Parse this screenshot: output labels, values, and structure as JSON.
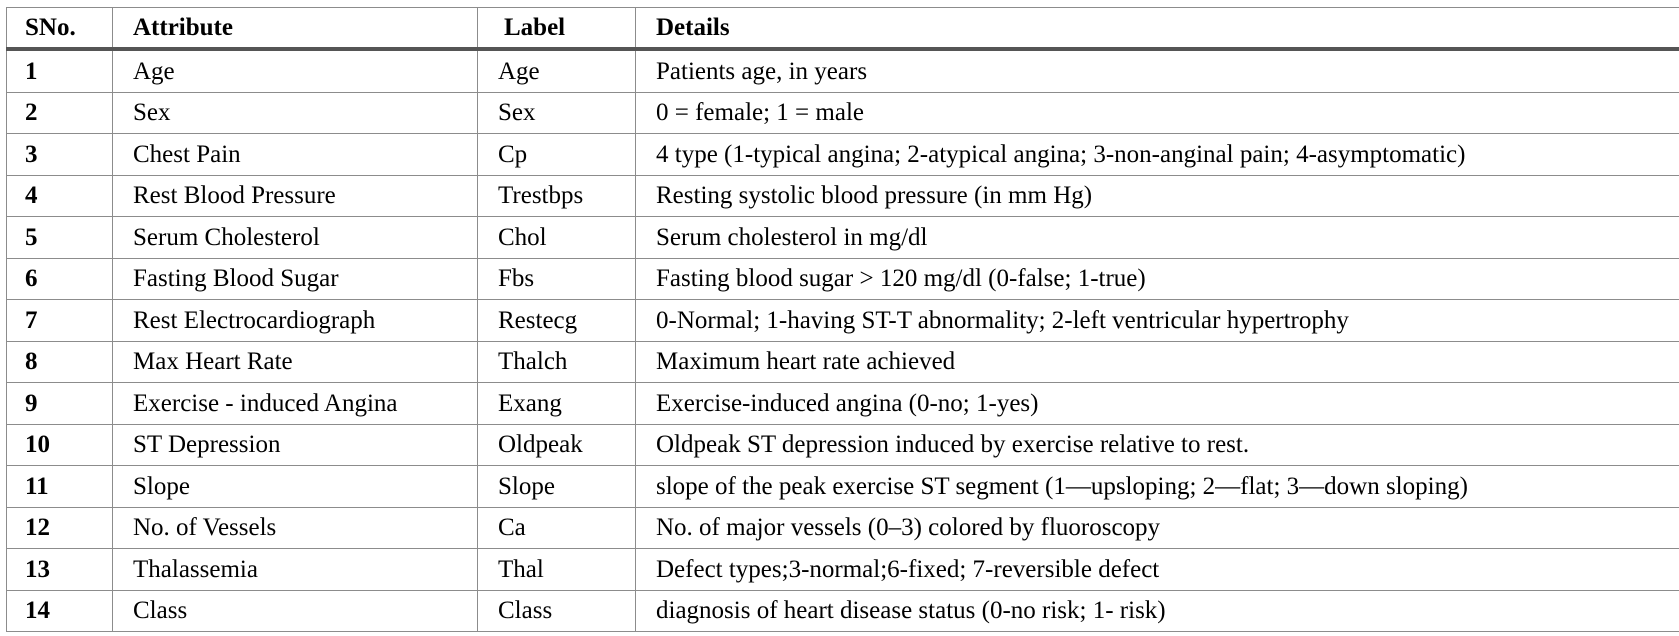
{
  "table": {
    "headers": {
      "sno": "SNo.",
      "attribute": "Attribute",
      "label": "Label",
      "details": "Details"
    },
    "rows": [
      {
        "sno": "1",
        "attribute": "Age",
        "label": "Age",
        "details": "Patients age, in years"
      },
      {
        "sno": "2",
        "attribute": "Sex",
        "label": "Sex",
        "details": "0 = female; 1 = male"
      },
      {
        "sno": "3",
        "attribute": "Chest Pain",
        "label": "Cp",
        "details": "4 type (1-typical angina; 2-atypical angina; 3-non-anginal pain; 4-asymptomatic)"
      },
      {
        "sno": "4",
        "attribute": "Rest Blood Pressure",
        "label": "Trestbps",
        "details": "Resting systolic blood pressure (in mm Hg)"
      },
      {
        "sno": "5",
        "attribute": "Serum Cholesterol",
        "label": "Chol",
        "details": "Serum cholesterol in mg/dl"
      },
      {
        "sno": "6",
        "attribute": "Fasting Blood Sugar",
        "label": "Fbs",
        "details": "Fasting blood sugar > 120 mg/dl (0-false; 1-true)"
      },
      {
        "sno": "7",
        "attribute": "Rest Electrocardiograph",
        "label": "Restecg",
        "details": "0-Normal; 1-having ST-T abnormality; 2-left ventricular hypertrophy"
      },
      {
        "sno": "8",
        "attribute": "Max Heart Rate",
        "label": "Thalch",
        "details": "Maximum heart rate achieved"
      },
      {
        "sno": "9",
        "attribute": "Exercise - induced Angina",
        "label": "Exang",
        "details": "Exercise-induced angina (0-no; 1-yes)"
      },
      {
        "sno": "10",
        "attribute": "ST Depression",
        "label": "Oldpeak",
        "details": "Oldpeak ST depression induced by exercise relative to rest."
      },
      {
        "sno": "11",
        "attribute": "Slope",
        "label": "Slope",
        "details": "slope of the peak exercise ST segment (1—upsloping; 2—flat; 3—down sloping)"
      },
      {
        "sno": "12",
        "attribute": "No. of Vessels",
        "label": "Ca",
        "details": "No. of major vessels (0–3) colored by fluoroscopy"
      },
      {
        "sno": "13",
        "attribute": "Thalassemia",
        "label": "Thal",
        "details": "Defect types;3-normal;6-fixed; 7-reversible defect"
      },
      {
        "sno": "14",
        "attribute": "Class",
        "label": "Class",
        "details": "diagnosis of heart disease status (0-no risk; 1- risk)"
      }
    ]
  }
}
